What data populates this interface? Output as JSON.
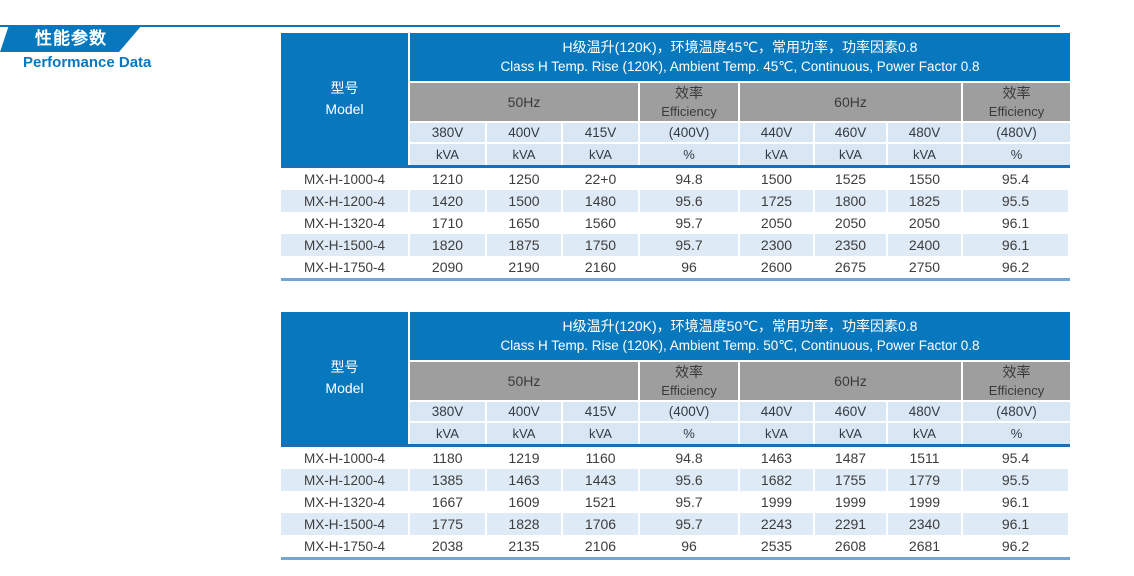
{
  "page": {
    "section_title_cn": "性能参数",
    "section_title_en": "Performance Data"
  },
  "colors": {
    "accent_blue": "#0878be",
    "subheader_gray": "#9e9e9e",
    "light_blue_cell": "#d9e7f4",
    "stripe_row": "#deeaf6",
    "header_rule": "#1b6db6",
    "bottom_rule": "#6fa8d8"
  },
  "tables": [
    {
      "title_cn": "H级温升(120K)，环境温度45℃，常用功率，功率因素0.8",
      "title_en": "Class H Temp. Rise (120K), Ambient Temp. 45℃, Continuous, Power Factor 0.8",
      "model_header_cn": "型号",
      "model_header_en": "Model",
      "group_50hz": "50Hz",
      "group_60hz": "60Hz",
      "efficiency_cn": "效率",
      "efficiency_en": "Efficiency",
      "voltages": [
        "380V",
        "400V",
        "415V",
        "(400V)",
        "440V",
        "460V",
        "480V",
        "(480V)"
      ],
      "units": [
        "kVA",
        "kVA",
        "kVA",
        "%",
        "kVA",
        "kVA",
        "kVA",
        "%"
      ],
      "rows": [
        {
          "model": "MX-H-1000-4",
          "values": [
            "1210",
            "1250",
            "22+0",
            "94.8",
            "1500",
            "1525",
            "1550",
            "95.4"
          ]
        },
        {
          "model": "MX-H-1200-4",
          "values": [
            "1420",
            "1500",
            "1480",
            "95.6",
            "1725",
            "1800",
            "1825",
            "95.5"
          ]
        },
        {
          "model": "MX-H-1320-4",
          "values": [
            "1710",
            "1650",
            "1560",
            "95.7",
            "2050",
            "2050",
            "2050",
            "96.1"
          ]
        },
        {
          "model": "MX-H-1500-4",
          "values": [
            "1820",
            "1875",
            "1750",
            "95.7",
            "2300",
            "2350",
            "2400",
            "96.1"
          ]
        },
        {
          "model": "MX-H-1750-4",
          "values": [
            "2090",
            "2190",
            "2160",
            "96",
            "2600",
            "2675",
            "2750",
            "96.2"
          ]
        }
      ]
    },
    {
      "title_cn": "H级温升(120K)，环境温度50℃，常用功率，功率因素0.8",
      "title_en": "Class H Temp. Rise (120K), Ambient Temp. 50℃, Continuous, Power Factor 0.8",
      "model_header_cn": "型号",
      "model_header_en": "Model",
      "group_50hz": "50Hz",
      "group_60hz": "60Hz",
      "efficiency_cn": "效率",
      "efficiency_en": "Efficiency",
      "voltages": [
        "380V",
        "400V",
        "415V",
        "(400V)",
        "440V",
        "460V",
        "480V",
        "(480V)"
      ],
      "units": [
        "kVA",
        "kVA",
        "kVA",
        "%",
        "kVA",
        "kVA",
        "kVA",
        "%"
      ],
      "rows": [
        {
          "model": "MX-H-1000-4",
          "values": [
            "1180",
            "1219",
            "1160",
            "94.8",
            "1463",
            "1487",
            "1511",
            "95.4"
          ]
        },
        {
          "model": "MX-H-1200-4",
          "values": [
            "1385",
            "1463",
            "1443",
            "95.6",
            "1682",
            "1755",
            "1779",
            "95.5"
          ]
        },
        {
          "model": "MX-H-1320-4",
          "values": [
            "1667",
            "1609",
            "1521",
            "95.7",
            "1999",
            "1999",
            "1999",
            "96.1"
          ]
        },
        {
          "model": "MX-H-1500-4",
          "values": [
            "1775",
            "1828",
            "1706",
            "95.7",
            "2243",
            "2291",
            "2340",
            "96.1"
          ]
        },
        {
          "model": "MX-H-1750-4",
          "values": [
            "2038",
            "2135",
            "2106",
            "96",
            "2535",
            "2608",
            "2681",
            "96.2"
          ]
        }
      ]
    }
  ]
}
